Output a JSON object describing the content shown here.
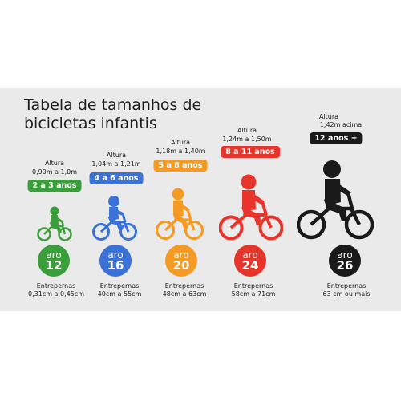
{
  "title": {
    "line1": "Tabela de tamanhos de",
    "line2": "bicicletas infantis"
  },
  "sizes": [
    {
      "height_label": "Altura",
      "height_range": "0,90m a 1,0m",
      "age": "2 a 3 anos",
      "aro_word": "aro",
      "aro_number": "12",
      "inseam_label": "Entrepernas",
      "inseam_range": "0,31cm a 0,45cm",
      "color": "#3a9e3a",
      "icon": "child-on-balance-bike-icon"
    },
    {
      "height_label": "Altura",
      "height_range": "1,04m a 1,21m",
      "age": "4 a 6 anos",
      "aro_word": "aro",
      "aro_number": "16",
      "inseam_label": "Entrepernas",
      "inseam_range": "40cm a 55cm",
      "color": "#3a72d8",
      "icon": "child-on-bike-icon"
    },
    {
      "height_label": "Altura",
      "height_range": "1,18m a 1,40m",
      "age": "5 a 8 anos",
      "aro_word": "aro",
      "aro_number": "20",
      "inseam_label": "Entrepernas",
      "inseam_range": "48cm a 63cm",
      "color": "#f59a23",
      "icon": "child-on-bike-icon"
    },
    {
      "height_label": "Altura",
      "height_range": "1,24m a 1,50m",
      "age": "8 a 11 anos",
      "aro_word": "aro",
      "aro_number": "24",
      "inseam_label": "Entrepernas",
      "inseam_range": "58cm a 71cm",
      "color": "#e8352c",
      "icon": "child-on-bike-icon"
    },
    {
      "height_label": "Altura",
      "height_range": "1,42m acima",
      "age": "12 anos +",
      "aro_word": "aro",
      "aro_number": "26",
      "inseam_label": "Entrepernas",
      "inseam_range": "63 cm ou mais",
      "color": "#1a1a1a",
      "icon": "teen-on-bike-icon"
    }
  ]
}
